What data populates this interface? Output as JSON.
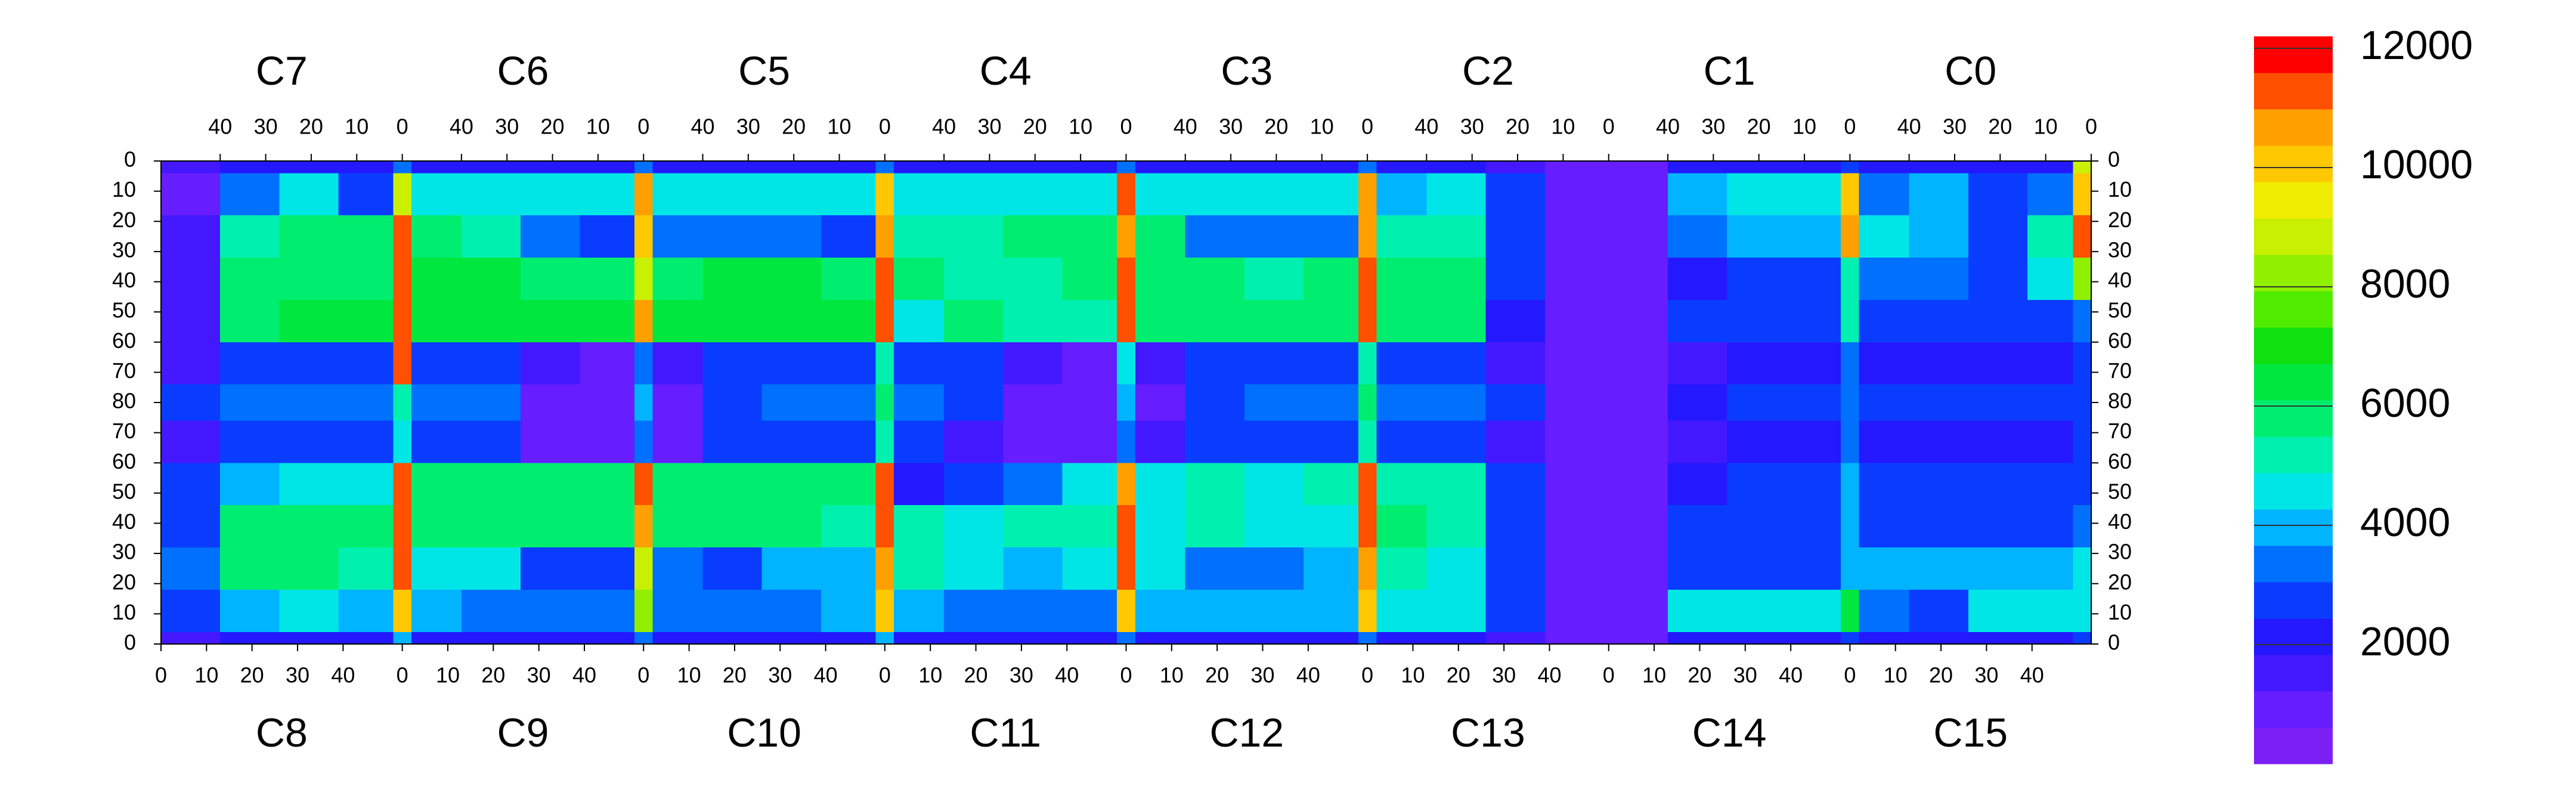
{
  "chart_data": {
    "type": "heatmap",
    "chip_labels_top": [
      "C7",
      "C6",
      "C5",
      "C4",
      "C3",
      "C2",
      "C1",
      "C0"
    ],
    "chip_labels_bottom": [
      "C8",
      "C9",
      "C10",
      "C11",
      "C12",
      "C13",
      "C14",
      "C15"
    ],
    "xlim": [
      0,
      424
    ],
    "ylim": [
      160,
      0
    ],
    "xticks_top": [
      {
        "value": 13,
        "label": "40"
      },
      {
        "value": 23,
        "label": "30"
      },
      {
        "value": 33,
        "label": "20"
      },
      {
        "value": 43,
        "label": "10"
      },
      {
        "value": 53,
        "label": "0"
      },
      {
        "value": 66,
        "label": "40"
      },
      {
        "value": 76,
        "label": "30"
      },
      {
        "value": 86,
        "label": "20"
      },
      {
        "value": 96,
        "label": "10"
      },
      {
        "value": 106,
        "label": "0"
      },
      {
        "value": 119,
        "label": "40"
      },
      {
        "value": 129,
        "label": "30"
      },
      {
        "value": 139,
        "label": "20"
      },
      {
        "value": 149,
        "label": "10"
      },
      {
        "value": 159,
        "label": "0"
      },
      {
        "value": 172,
        "label": "40"
      },
      {
        "value": 182,
        "label": "30"
      },
      {
        "value": 192,
        "label": "20"
      },
      {
        "value": 202,
        "label": "10"
      },
      {
        "value": 212,
        "label": "0"
      },
      {
        "value": 225,
        "label": "40"
      },
      {
        "value": 235,
        "label": "30"
      },
      {
        "value": 245,
        "label": "20"
      },
      {
        "value": 255,
        "label": "10"
      },
      {
        "value": 265,
        "label": "0"
      },
      {
        "value": 278,
        "label": "40"
      },
      {
        "value": 288,
        "label": "30"
      },
      {
        "value": 298,
        "label": "20"
      },
      {
        "value": 308,
        "label": "10"
      },
      {
        "value": 318,
        "label": "0"
      },
      {
        "value": 331,
        "label": "40"
      },
      {
        "value": 341,
        "label": "30"
      },
      {
        "value": 351,
        "label": "20"
      },
      {
        "value": 361,
        "label": "10"
      },
      {
        "value": 371,
        "label": "0"
      },
      {
        "value": 384,
        "label": "40"
      },
      {
        "value": 394,
        "label": "30"
      },
      {
        "value": 404,
        "label": "20"
      },
      {
        "value": 414,
        "label": "10"
      },
      {
        "value": 424,
        "label": "0"
      }
    ],
    "xticks_bottom": [
      0,
      10,
      20,
      30,
      40,
      {
        "value": 53,
        "label": "0"
      },
      {
        "value": 63,
        "label": "10"
      },
      {
        "value": 73,
        "label": "20"
      },
      {
        "value": 83,
        "label": "30"
      },
      {
        "value": 93,
        "label": "40"
      },
      {
        "value": 106,
        "label": "0"
      },
      {
        "value": 116,
        "label": "10"
      },
      {
        "value": 126,
        "label": "20"
      },
      {
        "value": 136,
        "label": "30"
      },
      {
        "value": 146,
        "label": "40"
      },
      {
        "value": 159,
        "label": "0"
      },
      {
        "value": 169,
        "label": "10"
      },
      {
        "value": 179,
        "label": "20"
      },
      {
        "value": 189,
        "label": "30"
      },
      {
        "value": 199,
        "label": "40"
      },
      {
        "value": 212,
        "label": "0"
      },
      {
        "value": 222,
        "label": "10"
      },
      {
        "value": 232,
        "label": "20"
      },
      {
        "value": 242,
        "label": "30"
      },
      {
        "value": 252,
        "label": "40"
      },
      {
        "value": 265,
        "label": "0"
      },
      {
        "value": 275,
        "label": "10"
      },
      {
        "value": 285,
        "label": "20"
      },
      {
        "value": 295,
        "label": "30"
      },
      {
        "value": 305,
        "label": "40"
      },
      {
        "value": 318,
        "label": "0"
      },
      {
        "value": 328,
        "label": "10"
      },
      {
        "value": 338,
        "label": "20"
      },
      {
        "value": 348,
        "label": "30"
      },
      {
        "value": 358,
        "label": "40"
      },
      {
        "value": 371,
        "label": "0"
      },
      {
        "value": 381,
        "label": "10"
      },
      {
        "value": 391,
        "label": "20"
      },
      {
        "value": 401,
        "label": "30"
      },
      {
        "value": 411,
        "label": "40"
      }
    ],
    "yticks": [
      0,
      10,
      20,
      30,
      40,
      50,
      60,
      70,
      80,
      {
        "value": 90,
        "label": "70"
      },
      {
        "value": 100,
        "label": "60"
      },
      {
        "value": 110,
        "label": "50"
      },
      {
        "value": 120,
        "label": "40"
      },
      {
        "value": 130,
        "label": "30"
      },
      {
        "value": 140,
        "label": "20"
      },
      {
        "value": 150,
        "label": "10"
      },
      {
        "value": 160,
        "label": "0"
      }
    ],
    "x_edges": [
      0,
      13,
      26,
      39,
      51,
      55,
      66,
      79,
      92,
      104,
      108,
      119,
      132,
      145,
      157,
      161,
      172,
      185,
      198,
      210,
      214,
      225,
      238,
      251,
      263,
      267,
      278,
      291,
      304,
      316,
      320,
      331,
      344,
      357,
      369,
      373,
      384,
      397,
      410,
      420,
      424
    ],
    "y_edges": [
      0,
      4,
      18,
      32,
      46,
      60,
      74,
      86,
      100,
      114,
      128,
      142,
      156,
      160
    ],
    "z": [
      [
        1500,
        2000,
        2000,
        2000,
        3500,
        2000,
        2000,
        2000,
        2000,
        3500,
        2000,
        2000,
        2000,
        2000,
        3500,
        2000,
        2000,
        2000,
        2000,
        3500,
        2000,
        2000,
        2000,
        2000,
        3500,
        2000,
        2000,
        1500,
        800,
        800,
        800,
        2000,
        2000,
        2000,
        3000,
        2000,
        2000,
        2000,
        2000,
        9000
      ],
      [
        1200,
        3500,
        4500,
        3000,
        9000,
        4500,
        4500,
        4500,
        4500,
        10500,
        4500,
        4500,
        4500,
        4500,
        10000,
        4500,
        4500,
        4500,
        4500,
        11000,
        4500,
        4500,
        4500,
        4500,
        10500,
        4000,
        4500,
        3000,
        1000,
        800,
        800,
        4000,
        4500,
        4500,
        10000,
        3500,
        4000,
        2500,
        3500,
        10000
      ],
      [
        1500,
        5000,
        5500,
        5500,
        11000,
        5500,
        5000,
        3500,
        3000,
        10000,
        3500,
        3500,
        3500,
        3000,
        10500,
        5000,
        5000,
        5500,
        5500,
        10500,
        5500,
        3500,
        3500,
        3500,
        10500,
        5000,
        5000,
        2500,
        800,
        800,
        800,
        3500,
        4000,
        4000,
        10500,
        4500,
        4000,
        3000,
        5000,
        11000
      ],
      [
        1800,
        5500,
        6000,
        6000,
        11500,
        6500,
        6500,
        6000,
        6000,
        9000,
        6000,
        6500,
        6500,
        6000,
        11000,
        5500,
        5000,
        5000,
        5500,
        11500,
        6000,
        6000,
        5000,
        5500,
        11000,
        5500,
        5500,
        2500,
        800,
        700,
        800,
        2000,
        2500,
        2500,
        5000,
        3500,
        3500,
        3000,
        4500,
        8000
      ],
      [
        1800,
        6000,
        6500,
        6500,
        11500,
        6500,
        6500,
        6500,
        6500,
        10500,
        6500,
        6500,
        6500,
        6500,
        11000,
        4500,
        5500,
        5000,
        5000,
        11000,
        5500,
        5500,
        6000,
        6000,
        11000,
        5500,
        5500,
        2000,
        800,
        700,
        800,
        2500,
        3000,
        3000,
        5000,
        3000,
        2500,
        3000,
        3000,
        3500
      ],
      [
        1500,
        2500,
        2500,
        2500,
        11000,
        2500,
        2500,
        1500,
        1000,
        3500,
        1500,
        2500,
        2500,
        2500,
        5000,
        3000,
        2500,
        1500,
        1000,
        4500,
        1500,
        2500,
        2500,
        2500,
        5000,
        3000,
        3000,
        1500,
        700,
        700,
        800,
        1500,
        2000,
        2000,
        3500,
        2000,
        2000,
        2000,
        2000,
        2500
      ],
      [
        2500,
        3500,
        3500,
        3500,
        5000,
        3500,
        3500,
        1000,
        1000,
        4000,
        1000,
        3000,
        3500,
        3500,
        5500,
        3500,
        3000,
        1000,
        1000,
        4000,
        1000,
        3000,
        3500,
        3500,
        5500,
        3500,
        3500,
        2500,
        700,
        700,
        800,
        2000,
        2500,
        2500,
        3500,
        2500,
        2500,
        2500,
        2500,
        3000
      ],
      [
        1800,
        2500,
        2500,
        2500,
        4500,
        2500,
        2500,
        1000,
        1000,
        3500,
        1000,
        2500,
        2500,
        2500,
        5000,
        2500,
        1500,
        1000,
        1000,
        3500,
        1500,
        2500,
        2500,
        2500,
        5000,
        3000,
        2500,
        1500,
        700,
        700,
        800,
        1500,
        2000,
        2000,
        3500,
        2000,
        2000,
        2000,
        2000,
        2500
      ],
      [
        2500,
        4000,
        4500,
        4500,
        11000,
        6000,
        6000,
        6000,
        6000,
        11000,
        6000,
        6000,
        6000,
        6000,
        11000,
        2000,
        3000,
        3500,
        4500,
        10500,
        4500,
        5000,
        4500,
        5000,
        11000,
        5000,
        5000,
        2500,
        700,
        700,
        800,
        2000,
        2500,
        2500,
        4000,
        2500,
        2500,
        2500,
        2500,
        3000
      ],
      [
        3000,
        5500,
        6000,
        5500,
        11500,
        5500,
        5500,
        5500,
        5500,
        10500,
        5500,
        5500,
        5500,
        5000,
        11500,
        5000,
        4500,
        5000,
        5000,
        11500,
        4500,
        5000,
        4500,
        4500,
        11000,
        5500,
        5000,
        2500,
        800,
        700,
        800,
        2500,
        3000,
        3000,
        4000,
        3000,
        3000,
        3000,
        3000,
        3500
      ],
      [
        3500,
        5500,
        5500,
        5000,
        11000,
        4500,
        4500,
        3000,
        3000,
        9000,
        3500,
        3000,
        4000,
        4000,
        10500,
        5000,
        4500,
        4000,
        4500,
        11000,
        4500,
        3500,
        3500,
        4000,
        10500,
        5000,
        4500,
        2500,
        800,
        700,
        800,
        2500,
        2500,
        2500,
        4000,
        4000,
        4000,
        4000,
        4000,
        4500
      ],
      [
        3000,
        4000,
        4500,
        4000,
        10000,
        4000,
        3500,
        3500,
        3500,
        8000,
        3500,
        3500,
        3500,
        4000,
        10000,
        4000,
        3500,
        3500,
        3500,
        10000,
        4000,
        4000,
        4000,
        4000,
        10000,
        4500,
        4500,
        2500,
        800,
        800,
        1000,
        4500,
        4500,
        4500,
        6500,
        3500,
        3000,
        4500,
        4500,
        4500
      ],
      [
        1500,
        2000,
        2000,
        2000,
        4000,
        2000,
        2000,
        2000,
        2000,
        3500,
        2000,
        2000,
        2000,
        2000,
        4000,
        2000,
        2000,
        2000,
        2000,
        3500,
        2000,
        2000,
        2000,
        2000,
        3500,
        2000,
        2000,
        1500,
        800,
        800,
        800,
        2000,
        2000,
        2000,
        3000,
        2000,
        2000,
        2000,
        2000,
        2500
      ]
    ],
    "zlim": [
      0,
      12200
    ],
    "zticks": [
      2000,
      4000,
      6000,
      8000,
      10000,
      12000
    ],
    "palette": [
      "#7c1ff5",
      "#661dff",
      "#4418ff",
      "#2418ff",
      "#0a3cff",
      "#0070ff",
      "#00b4ff",
      "#00e6e6",
      "#00f0b0",
      "#00ee70",
      "#00e840",
      "#10e010",
      "#50ec00",
      "#90f000",
      "#c8f000",
      "#f0ec00",
      "#ffc800",
      "#ffa000",
      "#ff5000",
      "#ff0000"
    ]
  }
}
